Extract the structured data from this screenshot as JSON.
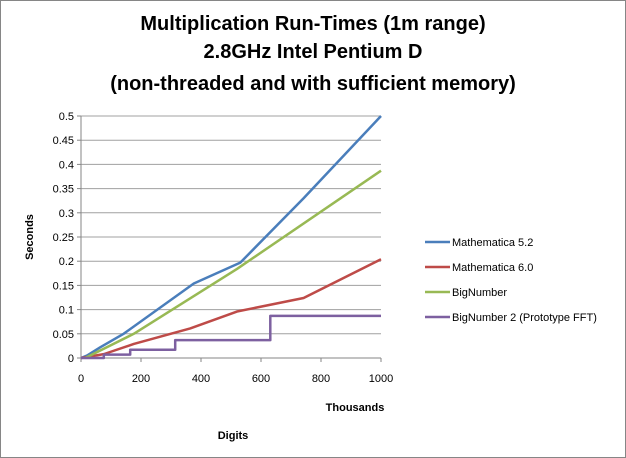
{
  "chart_data": {
    "type": "line",
    "title": [
      "Multiplication Run-Times (1m range)",
      "2.8GHz Intel Pentium D",
      "(non-threaded and with sufficient memory)"
    ],
    "xlabel": "Digits",
    "x_unit_label": "Thousands",
    "ylabel": "Seconds",
    "xlim": [
      0,
      1000
    ],
    "ylim": [
      0,
      0.5
    ],
    "xticks": [
      "0",
      "200",
      "400",
      "600",
      "800",
      "1000"
    ],
    "yticks": [
      "0",
      "0.05",
      "0.1",
      "0.15",
      "0.2",
      "0.25",
      "0.3",
      "0.35",
      "0.4",
      "0.45",
      "0.5"
    ],
    "grid": "horizontal",
    "legend": "right",
    "series": [
      {
        "name": "Mathematica 5.2",
        "color": "#4a7ebb",
        "points": [
          [
            0,
            0
          ],
          [
            20,
            0.005
          ],
          [
            64,
            0.022
          ],
          [
            142,
            0.05
          ],
          [
            376,
            0.154
          ],
          [
            531,
            0.197
          ],
          [
            742,
            0.33
          ],
          [
            1000,
            0.5
          ]
        ]
      },
      {
        "name": "Mathematica 6.0",
        "color": "#be4b48",
        "points": [
          [
            0,
            0
          ],
          [
            76,
            0.008
          ],
          [
            176,
            0.029
          ],
          [
            364,
            0.061
          ],
          [
            520,
            0.096
          ],
          [
            742,
            0.124
          ],
          [
            1000,
            0.204
          ]
        ]
      },
      {
        "name": "BigNumber",
        "color": "#98b954",
        "points": [
          [
            14,
            0
          ],
          [
            176,
            0.05
          ],
          [
            520,
            0.184
          ],
          [
            1000,
            0.387
          ]
        ]
      },
      {
        "name": "BigNumber 2 (Prototype FFT)",
        "color": "#7d60a0",
        "points": [
          [
            0,
            0
          ],
          [
            76,
            0
          ],
          [
            76,
            0.007
          ],
          [
            164,
            0.007
          ],
          [
            164,
            0.017
          ],
          [
            314,
            0.017
          ],
          [
            314,
            0.037
          ],
          [
            631,
            0.037
          ],
          [
            631,
            0.087
          ],
          [
            1000,
            0.087
          ]
        ]
      }
    ]
  }
}
